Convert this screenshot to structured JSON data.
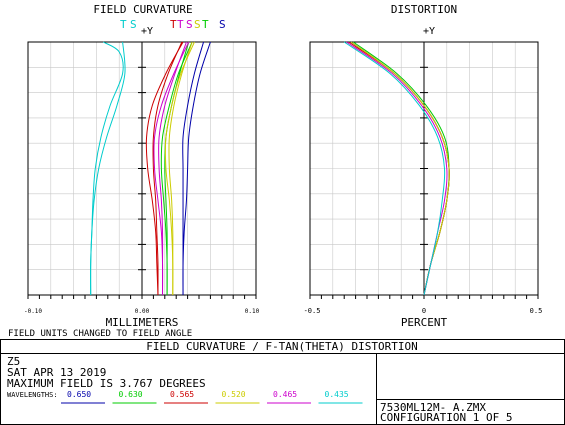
{
  "chart_data": [
    {
      "type": "line",
      "title": "FIELD CURVATURE",
      "axis_label": "+Y",
      "xlabel": "MILLIMETERS",
      "note": "FIELD UNITS CHANGED TO FIELD ANGLE",
      "xlim": [
        -0.1,
        0.1
      ],
      "ylim": [
        0,
        3.767
      ],
      "grid": true,
      "x_ticks": [
        "-0.10",
        "0.00",
        "0.10"
      ],
      "legend_labels": [
        "T",
        "S",
        "T",
        "T",
        "S",
        "S",
        "T",
        "S"
      ],
      "series": [
        {
          "color": "#0000aa",
          "style": "tangential",
          "values": [
            [
              0.036,
              0
            ],
            [
              0.036,
              0.47
            ],
            [
              0.037,
              0.94
            ],
            [
              0.039,
              1.41
            ],
            [
              0.04,
              1.88
            ],
            [
              0.041,
              2.35
            ],
            [
              0.045,
              2.82
            ],
            [
              0.051,
              3.3
            ],
            [
              0.06,
              3.767
            ]
          ]
        },
        {
          "color": "#0000aa",
          "style": "sagittal",
          "values": [
            [
              0.036,
              0
            ],
            [
              0.036,
              0.47
            ],
            [
              0.036,
              0.94
            ],
            [
              0.036,
              1.41
            ],
            [
              0.036,
              1.88
            ],
            [
              0.036,
              2.35
            ],
            [
              0.04,
              2.82
            ],
            [
              0.046,
              3.3
            ],
            [
              0.054,
              3.767
            ]
          ]
        },
        {
          "color": "#00cc00",
          "style": "tangential",
          "values": [
            [
              0.022,
              0
            ],
            [
              0.022,
              0.47
            ],
            [
              0.021,
              0.94
            ],
            [
              0.019,
              1.41
            ],
            [
              0.017,
              1.88
            ],
            [
              0.018,
              2.35
            ],
            [
              0.024,
              2.82
            ],
            [
              0.032,
              3.3
            ],
            [
              0.044,
              3.767
            ]
          ]
        },
        {
          "color": "#00cc00",
          "style": "sagittal",
          "values": [
            [
              0.022,
              0
            ],
            [
              0.022,
              0.47
            ],
            [
              0.022,
              0.94
            ],
            [
              0.021,
              1.41
            ],
            [
              0.02,
              1.88
            ],
            [
              0.021,
              2.35
            ],
            [
              0.026,
              2.82
            ],
            [
              0.033,
              3.3
            ],
            [
              0.041,
              3.767
            ]
          ]
        },
        {
          "color": "#cc0000",
          "style": "tangential",
          "values": [
            [
              0.014,
              0
            ],
            [
              0.013,
              0.47
            ],
            [
              0.012,
              0.94
            ],
            [
              0.009,
              1.41
            ],
            [
              0.005,
              1.88
            ],
            [
              0.004,
              2.35
            ],
            [
              0.009,
              2.82
            ],
            [
              0.021,
              3.3
            ],
            [
              0.036,
              3.767
            ]
          ]
        },
        {
          "color": "#cc0000",
          "style": "sagittal",
          "values": [
            [
              0.014,
              0
            ],
            [
              0.014,
              0.47
            ],
            [
              0.013,
              0.94
            ],
            [
              0.012,
              1.41
            ],
            [
              0.01,
              1.88
            ],
            [
              0.01,
              2.35
            ],
            [
              0.014,
              2.82
            ],
            [
              0.023,
              3.3
            ],
            [
              0.035,
              3.767
            ]
          ]
        },
        {
          "color": "#cccc00",
          "style": "tangential",
          "values": [
            [
              0.027,
              0
            ],
            [
              0.027,
              0.47
            ],
            [
              0.026,
              0.94
            ],
            [
              0.024,
              1.41
            ],
            [
              0.021,
              1.88
            ],
            [
              0.021,
              2.35
            ],
            [
              0.026,
              2.82
            ],
            [
              0.034,
              3.3
            ],
            [
              0.046,
              3.767
            ]
          ]
        },
        {
          "color": "#cccc00",
          "style": "sagittal",
          "values": [
            [
              0.027,
              0
            ],
            [
              0.027,
              0.47
            ],
            [
              0.027,
              0.94
            ],
            [
              0.026,
              1.41
            ],
            [
              0.024,
              1.88
            ],
            [
              0.024,
              2.35
            ],
            [
              0.028,
              2.82
            ],
            [
              0.035,
              3.3
            ],
            [
              0.044,
              3.767
            ]
          ]
        },
        {
          "color": "#cc00cc",
          "style": "tangential",
          "values": [
            [
              0.018,
              0
            ],
            [
              0.018,
              0.47
            ],
            [
              0.017,
              0.94
            ],
            [
              0.014,
              1.41
            ],
            [
              0.011,
              1.88
            ],
            [
              0.011,
              2.35
            ],
            [
              0.017,
              2.82
            ],
            [
              0.028,
              3.3
            ],
            [
              0.041,
              3.767
            ]
          ]
        },
        {
          "color": "#cc00cc",
          "style": "sagittal",
          "values": [
            [
              0.018,
              0
            ],
            [
              0.018,
              0.47
            ],
            [
              0.018,
              0.94
            ],
            [
              0.017,
              1.41
            ],
            [
              0.015,
              1.88
            ],
            [
              0.015,
              2.35
            ],
            [
              0.02,
              2.82
            ],
            [
              0.029,
              3.3
            ],
            [
              0.039,
              3.767
            ]
          ]
        },
        {
          "color": "#00cccc",
          "style": "tangential",
          "values": [
            [
              -0.045,
              0
            ],
            [
              -0.045,
              0.47
            ],
            [
              -0.044,
              0.94
            ],
            [
              -0.043,
              1.41
            ],
            [
              -0.041,
              1.88
            ],
            [
              -0.036,
              2.35
            ],
            [
              -0.028,
              2.82
            ],
            [
              -0.017,
              3.3
            ],
            [
              -0.02,
              3.62
            ],
            [
              -0.034,
              3.767
            ]
          ]
        },
        {
          "color": "#00cccc",
          "style": "sagittal",
          "values": [
            [
              -0.045,
              0
            ],
            [
              -0.045,
              0.47
            ],
            [
              -0.044,
              0.94
            ],
            [
              -0.042,
              1.41
            ],
            [
              -0.038,
              1.88
            ],
            [
              -0.031,
              2.35
            ],
            [
              -0.022,
              2.82
            ],
            [
              -0.015,
              3.3
            ],
            [
              -0.017,
              3.767
            ]
          ]
        }
      ]
    },
    {
      "type": "line",
      "title": "DISTORTION",
      "axis_label": "+Y",
      "xlabel": "PERCENT",
      "xlim": [
        -0.5,
        0.5
      ],
      "ylim": [
        0,
        3.767
      ],
      "grid": true,
      "x_ticks": [
        "-0.5",
        "0",
        "0.5"
      ],
      "series": [
        {
          "color": "#0000aa",
          "values": [
            [
              0,
              0
            ],
            [
              0.03,
              0.47
            ],
            [
              0.07,
              0.94
            ],
            [
              0.1,
              1.41
            ],
            [
              0.11,
              1.88
            ],
            [
              0.08,
              2.35
            ],
            [
              0.0,
              2.82
            ],
            [
              -0.13,
              3.3
            ],
            [
              -0.32,
              3.767
            ]
          ]
        },
        {
          "color": "#00cc00",
          "values": [
            [
              0,
              0
            ],
            [
              0.03,
              0.47
            ],
            [
              0.07,
              0.94
            ],
            [
              0.1,
              1.41
            ],
            [
              0.11,
              1.88
            ],
            [
              0.09,
              2.35
            ],
            [
              0.01,
              2.82
            ],
            [
              -0.12,
              3.3
            ],
            [
              -0.31,
              3.767
            ]
          ]
        },
        {
          "color": "#cc0000",
          "values": [
            [
              0,
              0
            ],
            [
              0.03,
              0.47
            ],
            [
              0.07,
              0.94
            ],
            [
              0.1,
              1.41
            ],
            [
              0.11,
              1.88
            ],
            [
              0.08,
              2.35
            ],
            [
              0.0,
              2.82
            ],
            [
              -0.13,
              3.3
            ],
            [
              -0.33,
              3.767
            ]
          ]
        },
        {
          "color": "#cccc00",
          "values": [
            [
              0,
              0
            ],
            [
              0.03,
              0.47
            ],
            [
              0.07,
              0.94
            ],
            [
              0.1,
              1.41
            ],
            [
              0.11,
              1.88
            ],
            [
              0.08,
              2.35
            ],
            [
              0.0,
              2.82
            ],
            [
              -0.13,
              3.3
            ],
            [
              -0.32,
              3.767
            ]
          ]
        },
        {
          "color": "#cc00cc",
          "values": [
            [
              0,
              0
            ],
            [
              0.03,
              0.47
            ],
            [
              0.06,
              0.94
            ],
            [
              0.09,
              1.41
            ],
            [
              0.1,
              1.88
            ],
            [
              0.07,
              2.35
            ],
            [
              -0.01,
              2.82
            ],
            [
              -0.14,
              3.3
            ],
            [
              -0.34,
              3.767
            ]
          ]
        },
        {
          "color": "#00cccc",
          "values": [
            [
              0,
              0
            ],
            [
              0.03,
              0.47
            ],
            [
              0.06,
              0.94
            ],
            [
              0.08,
              1.41
            ],
            [
              0.09,
              1.88
            ],
            [
              0.06,
              2.35
            ],
            [
              -0.02,
              2.82
            ],
            [
              -0.15,
              3.3
            ],
            [
              -0.35,
              3.767
            ]
          ]
        }
      ]
    }
  ],
  "footer": {
    "banner": "FIELD CURVATURE / F-TAN(THETA) DISTORTION",
    "line1": "Z5",
    "line2": "SAT APR 13 2019",
    "line3": "MAXIMUM FIELD IS 3.767 DEGREES",
    "wavelengths_label": "WAVELENGTHS:",
    "wavelengths": [
      {
        "label": "0.650",
        "color": "#0000aa"
      },
      {
        "label": "0.630",
        "color": "#00cc00"
      },
      {
        "label": "0.565",
        "color": "#cc0000"
      },
      {
        "label": "0.520",
        "color": "#cccc00"
      },
      {
        "label": "0.465",
        "color": "#cc00cc"
      },
      {
        "label": "0.435",
        "color": "#00cccc"
      }
    ],
    "file_name": "7530ML12M- A.ZMX",
    "configuration": "CONFIGURATION 1 OF 5"
  }
}
